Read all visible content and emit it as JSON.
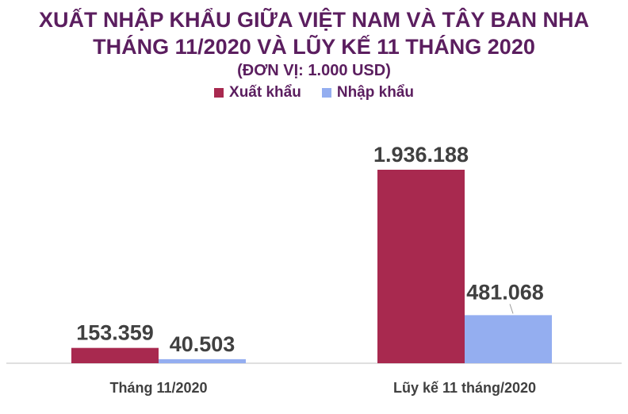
{
  "chart_data": {
    "type": "bar",
    "title": "XUẤT NHẬP KHẨU GIỮA VIỆT NAM VÀ TÂY BAN NHA",
    "subtitle": "THÁNG 11/2020 VÀ LŨY KẾ 11 THÁNG 2020",
    "unit_note": "(ĐƠN VỊ: 1.000 USD)",
    "categories": [
      "Tháng 11/2020",
      "Lũy kế 11 tháng/2020"
    ],
    "series": [
      {
        "name": "Xuất khẩu",
        "color": "#a8294f",
        "values": [
          153359,
          1936188
        ],
        "labels": [
          "153.359",
          "1.936.188"
        ]
      },
      {
        "name": "Nhập khẩu",
        "color": "#94aef0",
        "values": [
          40503,
          481068
        ],
        "labels": [
          "40.503",
          "481.068"
        ]
      }
    ],
    "ylim": [
      0,
      1936188
    ],
    "grid": false,
    "legend_position": "top"
  }
}
